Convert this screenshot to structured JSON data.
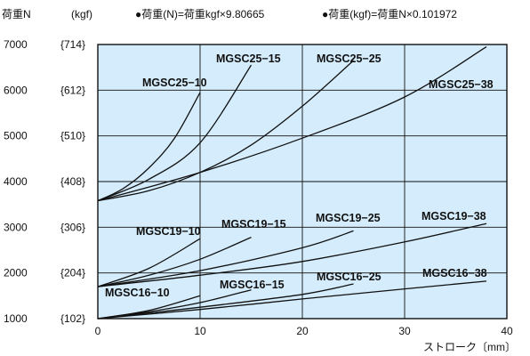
{
  "chart_data": {
    "type": "line",
    "ylabel": "荷重N",
    "ylabel_alt": "(kgf)",
    "xlabel": "ストローク〔mm〕",
    "notes": [
      "●荷重(N)=荷重kgf×9.80665",
      "●荷重(kgf)=荷重N×0.101972"
    ],
    "xlim": [
      0,
      40
    ],
    "ylim": [
      1000,
      7000
    ],
    "x_ticks": [
      "0",
      "10",
      "20",
      "30",
      "40"
    ],
    "y_ticks": [
      {
        "n": "7000",
        "kgf": "{714}"
      },
      {
        "n": "6000",
        "kgf": "{612}"
      },
      {
        "n": "5000",
        "kgf": "{510}"
      },
      {
        "n": "4000",
        "kgf": "{408}"
      },
      {
        "n": "3000",
        "kgf": "{306}"
      },
      {
        "n": "2000",
        "kgf": "{204}"
      },
      {
        "n": "1000",
        "kgf": "{102}"
      }
    ],
    "grid": true,
    "background": "#d4ecfb",
    "line_color": "#111111",
    "series": [
      {
        "name": "MGSC25−10",
        "x": [
          0,
          2.5,
          5,
          7.5,
          10
        ],
        "y": [
          3580,
          3850,
          4300,
          4950,
          5950
        ]
      },
      {
        "name": "MGSC25−15",
        "x": [
          0,
          5,
          10,
          15
        ],
        "y": [
          3580,
          4050,
          4850,
          6550
        ]
      },
      {
        "name": "MGSC25−25",
        "x": [
          0,
          5,
          10,
          15,
          20,
          25
        ],
        "y": [
          3580,
          3800,
          4200,
          4800,
          5650,
          6650
        ]
      },
      {
        "name": "MGSC25−38",
        "x": [
          0,
          10,
          20,
          30,
          38
        ],
        "y": [
          3580,
          4200,
          4950,
          5850,
          6950
        ]
      },
      {
        "name": "MGSC19−10",
        "x": [
          0,
          5,
          10
        ],
        "y": [
          1700,
          2100,
          2750
        ]
      },
      {
        "name": "MGSC19−15",
        "x": [
          0,
          5,
          10,
          15
        ],
        "y": [
          1700,
          1950,
          2300,
          2780
        ]
      },
      {
        "name": "MGSC19−25",
        "x": [
          0,
          10,
          20,
          25
        ],
        "y": [
          1700,
          2050,
          2550,
          2920
        ]
      },
      {
        "name": "MGSC19−38",
        "x": [
          0,
          10,
          20,
          30,
          38
        ],
        "y": [
          1700,
          1950,
          2250,
          2680,
          3080
        ]
      },
      {
        "name": "MGSC16−10",
        "x": [
          0,
          5,
          10
        ],
        "y": [
          1000,
          1180,
          1500
        ]
      },
      {
        "name": "MGSC16−15",
        "x": [
          0,
          5,
          10,
          15
        ],
        "y": [
          1000,
          1150,
          1350,
          1630
        ]
      },
      {
        "name": "MGSC16−25",
        "x": [
          0,
          10,
          20,
          25
        ],
        "y": [
          1000,
          1250,
          1530,
          1760
        ]
      },
      {
        "name": "MGSC16−38",
        "x": [
          0,
          10,
          20,
          30,
          38
        ],
        "y": [
          1000,
          1200,
          1430,
          1650,
          1820
        ]
      }
    ]
  }
}
